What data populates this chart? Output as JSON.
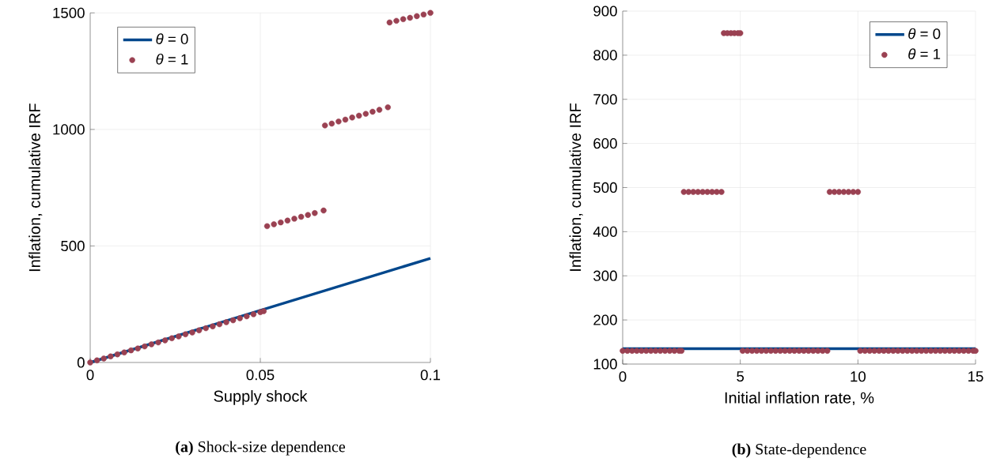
{
  "chart_data": [
    {
      "type": "line",
      "xlabel": "Supply shock",
      "ylabel": "Inflation, cumulative IRF",
      "xlim": [
        0,
        0.1
      ],
      "ylim": [
        0,
        1500
      ],
      "xticks": [
        0,
        0.05,
        0.1
      ],
      "yticks": [
        0,
        500,
        1000,
        1500
      ],
      "grid": true,
      "legend": "top left",
      "annotations": [
        "**(a)** Shock-size dependence"
      ],
      "series": [
        {
          "name": "*θ* = 0",
          "color": "#00478c",
          "x": [
            0,
            0.1
          ],
          "values": [
            0,
            447
          ]
        },
        {
          "name": "*θ* = 1",
          "type": "scatter",
          "marker": "circle",
          "color": "#9a4152",
          "x": [
            0,
            0.002,
            0.004,
            0.006,
            0.008,
            0.01,
            0.012,
            0.014,
            0.016,
            0.018,
            0.02,
            0.022,
            0.024,
            0.026,
            0.028,
            0.03,
            0.032,
            0.034,
            0.036,
            0.038,
            0.04,
            0.042,
            0.044,
            0.046,
            0.048,
            0.05,
            0.051,
            0.052,
            0.054,
            0.056,
            0.058,
            0.06,
            0.062,
            0.064,
            0.066,
            0.0686,
            0.069,
            0.071,
            0.073,
            0.075,
            0.077,
            0.079,
            0.081,
            0.083,
            0.085,
            0.0875,
            0.088,
            0.09,
            0.092,
            0.094,
            0.096,
            0.098,
            0.1
          ],
          "values": [
            0,
            9,
            17,
            26,
            35,
            43,
            52,
            60,
            69,
            78,
            86,
            95,
            104,
            112,
            121,
            129,
            138,
            147,
            155,
            164,
            173,
            181,
            190,
            198,
            207,
            216,
            220,
            585,
            593,
            601,
            609,
            617,
            625,
            633,
            641,
            652,
            1017,
            1025,
            1034,
            1042,
            1051,
            1059,
            1067,
            1076,
            1084,
            1095,
            1459,
            1466,
            1473,
            1479,
            1486,
            1493,
            1500
          ]
        }
      ]
    },
    {
      "type": "line",
      "xlabel": "Initial inflation rate, %",
      "ylabel": "Inflation, cumulative IRF",
      "xlim": [
        0,
        15
      ],
      "ylim": [
        100,
        900
      ],
      "xticks": [
        0,
        5,
        10,
        15
      ],
      "yticks": [
        100,
        200,
        300,
        400,
        500,
        600,
        700,
        800,
        900
      ],
      "grid": true,
      "legend": "top right",
      "annotations": [
        "**(b)** State-dependence"
      ],
      "series": [
        {
          "name": "*θ* = 0",
          "color": "#00478c",
          "x": [
            0,
            15
          ],
          "values": [
            135,
            135
          ]
        },
        {
          "name": "*θ* = 1",
          "type": "scatter",
          "marker": "circle",
          "color": "#9a4152",
          "x": [
            0,
            0.2,
            0.4,
            0.6,
            0.8,
            1,
            1.2,
            1.4,
            1.6,
            1.8,
            2,
            2.2,
            2.4,
            2.5,
            2.6,
            2.8,
            3,
            3.2,
            3.4,
            3.6,
            3.8,
            4,
            4.2,
            4.3,
            4.45,
            4.6,
            4.75,
            4.9,
            5,
            5.1,
            5.3,
            5.5,
            5.7,
            5.9,
            6.1,
            6.3,
            6.5,
            6.7,
            6.9,
            7.1,
            7.3,
            7.5,
            7.7,
            7.9,
            8.1,
            8.3,
            8.5,
            8.7,
            8.8,
            9,
            9.2,
            9.4,
            9.6,
            9.8,
            10,
            10.1,
            10.3,
            10.5,
            10.7,
            10.9,
            11.1,
            11.3,
            11.5,
            11.7,
            11.9,
            12.1,
            12.3,
            12.5,
            12.7,
            12.9,
            13.1,
            13.3,
            13.5,
            13.7,
            13.9,
            14.1,
            14.3,
            14.5,
            14.7,
            14.9,
            15
          ],
          "values": [
            130,
            130,
            130,
            130,
            130,
            130,
            130,
            130,
            130,
            130,
            130,
            130,
            130,
            130,
            490,
            490,
            490,
            490,
            490,
            490,
            490,
            490,
            490,
            850,
            850,
            850,
            850,
            850,
            850,
            130,
            130,
            130,
            130,
            130,
            130,
            130,
            130,
            130,
            130,
            130,
            130,
            130,
            130,
            130,
            130,
            130,
            130,
            130,
            490,
            490,
            490,
            490,
            490,
            490,
            490,
            130,
            130,
            130,
            130,
            130,
            130,
            130,
            130,
            130,
            130,
            130,
            130,
            130,
            130,
            130,
            130,
            130,
            130,
            130,
            130,
            130,
            130,
            130,
            130,
            130,
            130
          ]
        }
      ]
    }
  ]
}
